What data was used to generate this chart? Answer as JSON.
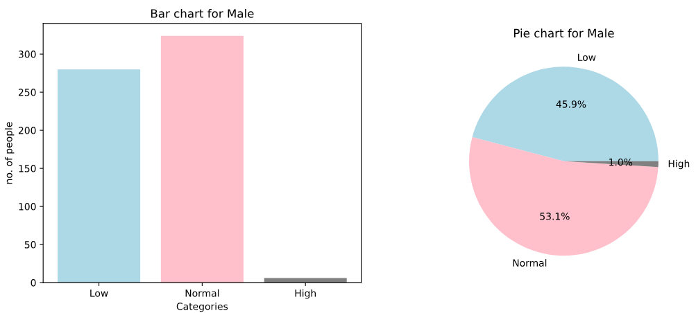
{
  "chart_data": [
    {
      "type": "bar",
      "title": "Bar chart for Male",
      "xlabel": "Categories",
      "ylabel": "no. of people",
      "categories": [
        "Low",
        "Normal",
        "High"
      ],
      "values": [
        280,
        324,
        6
      ],
      "colors": [
        "#add8e6",
        "#ffc0cb",
        "#808080"
      ],
      "ylim": [
        0,
        340.2
      ],
      "yticks": [
        0,
        50,
        100,
        150,
        200,
        250,
        300
      ],
      "grid": false
    },
    {
      "type": "pie",
      "title": "Pie chart for Male",
      "categories": [
        "Low",
        "Normal",
        "High"
      ],
      "values": [
        45.9,
        53.1,
        1.0
      ],
      "colors": [
        "#add8e6",
        "#ffc0cb",
        "#808080"
      ],
      "value_labels": [
        "45.9%",
        "53.1%",
        "1.0%"
      ]
    }
  ]
}
